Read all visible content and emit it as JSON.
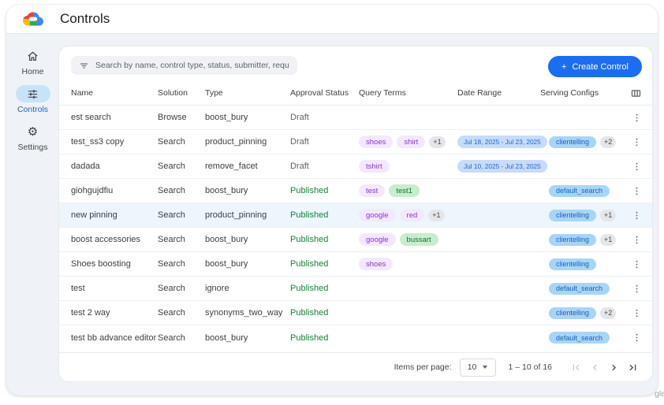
{
  "app": {
    "title": "Controls",
    "watermark": "gle"
  },
  "sidebar": {
    "items": [
      {
        "label": "Home",
        "icon": "home-icon",
        "active": false
      },
      {
        "label": "Controls",
        "icon": "tune-icon",
        "active": true
      },
      {
        "label": "Settings",
        "icon": "gear-icon",
        "active": false
      }
    ]
  },
  "toolbar": {
    "search_placeholder": "Search by name, control type, status, submitter, requested on",
    "create_button_plus": "+",
    "create_button_label": "Create Control"
  },
  "table": {
    "columns": [
      "Name",
      "Solution",
      "Type",
      "Approval Status",
      "Query Terms",
      "Date Range",
      "Serving Configs"
    ],
    "rows": [
      {
        "name": "est search",
        "solution": "Browse",
        "type": "boost_bury",
        "status": "Draft",
        "query_terms": [],
        "query_more": "",
        "date_range": "",
        "serving_configs": [],
        "serving_more": "",
        "highlighted": false
      },
      {
        "name": "test_ss3 copy",
        "solution": "Search",
        "type": "product_pinning",
        "status": "Draft",
        "query_terms": [
          {
            "text": "shoes",
            "color": "purple"
          },
          {
            "text": "shirt",
            "color": "purple"
          }
        ],
        "query_more": "+1",
        "date_range": "Jul 18, 2025 - Jul 23, 2025",
        "serving_configs": [
          "clientelling"
        ],
        "serving_more": "+2",
        "highlighted": false
      },
      {
        "name": "dadada",
        "solution": "Search",
        "type": "remove_facet",
        "status": "Draft",
        "query_terms": [
          {
            "text": "tshirt",
            "color": "purple"
          }
        ],
        "query_more": "",
        "date_range": "Jul 10, 2025 - Jul 23, 2025",
        "serving_configs": [],
        "serving_more": "",
        "highlighted": false
      },
      {
        "name": "giohgujdfiu",
        "solution": "Search",
        "type": "boost_bury",
        "status": "Published",
        "query_terms": [
          {
            "text": "test",
            "color": "purple"
          },
          {
            "text": "test1",
            "color": "green"
          }
        ],
        "query_more": "",
        "date_range": "",
        "serving_configs": [
          "default_search"
        ],
        "serving_more": "",
        "highlighted": false
      },
      {
        "name": "new pinning",
        "solution": "Search",
        "type": "product_pinning",
        "status": "Published",
        "query_terms": [
          {
            "text": "google",
            "color": "purple"
          },
          {
            "text": "red",
            "color": "purple"
          }
        ],
        "query_more": "+1",
        "date_range": "",
        "serving_configs": [
          "clientelling"
        ],
        "serving_more": "+1",
        "highlighted": true
      },
      {
        "name": "boost accessories",
        "solution": "Search",
        "type": "boost_bury",
        "status": "Published",
        "query_terms": [
          {
            "text": "google",
            "color": "purple"
          },
          {
            "text": "bussart",
            "color": "green"
          }
        ],
        "query_more": "",
        "date_range": "",
        "serving_configs": [
          "clientelling"
        ],
        "serving_more": "+1",
        "highlighted": false
      },
      {
        "name": "Shoes boosting",
        "solution": "Search",
        "type": "boost_bury",
        "status": "Published",
        "query_terms": [
          {
            "text": "shoes",
            "color": "purple"
          }
        ],
        "query_more": "",
        "date_range": "",
        "serving_configs": [
          "clientelling"
        ],
        "serving_more": "",
        "highlighted": false
      },
      {
        "name": "test",
        "solution": "Search",
        "type": "ignore",
        "status": "Published",
        "query_terms": [],
        "query_more": "",
        "date_range": "",
        "serving_configs": [
          "default_search"
        ],
        "serving_more": "",
        "highlighted": false
      },
      {
        "name": "test 2 way",
        "solution": "Search",
        "type": "synonyms_two_way",
        "status": "Published",
        "query_terms": [],
        "query_more": "",
        "date_range": "",
        "serving_configs": [
          "clientelling"
        ],
        "serving_more": "+2",
        "highlighted": false
      },
      {
        "name": "test bb advance editor",
        "solution": "Search",
        "type": "boost_bury",
        "status": "Published",
        "query_terms": [],
        "query_more": "",
        "date_range": "",
        "serving_configs": [
          "default_search"
        ],
        "serving_more": "",
        "highlighted": false
      }
    ]
  },
  "pagination": {
    "items_per_page_label": "Items per page:",
    "items_per_page_value": "10",
    "range_label": "1 – 10 of 16"
  },
  "colors": {
    "accent": "#1a6ef3",
    "published": "#188038",
    "draft": "#5f6368",
    "pill_bg": "#c7e3f7",
    "row_highlight": "#edf5fd",
    "chip_purple_bg": "#f3e8fd",
    "chip_purple_text": "#8e32d1",
    "chip_green_bg": "#c9ecce",
    "chip_green_text": "#137333",
    "chip_blue_bg": "#c7dcfa",
    "chip_blue_text": "#1967d2",
    "chip_serving_bg": "#a9d5f5",
    "chip_serving_text": "#1660c9",
    "chip_count_bg": "#e4e6ea",
    "chip_count_text": "#444746"
  }
}
